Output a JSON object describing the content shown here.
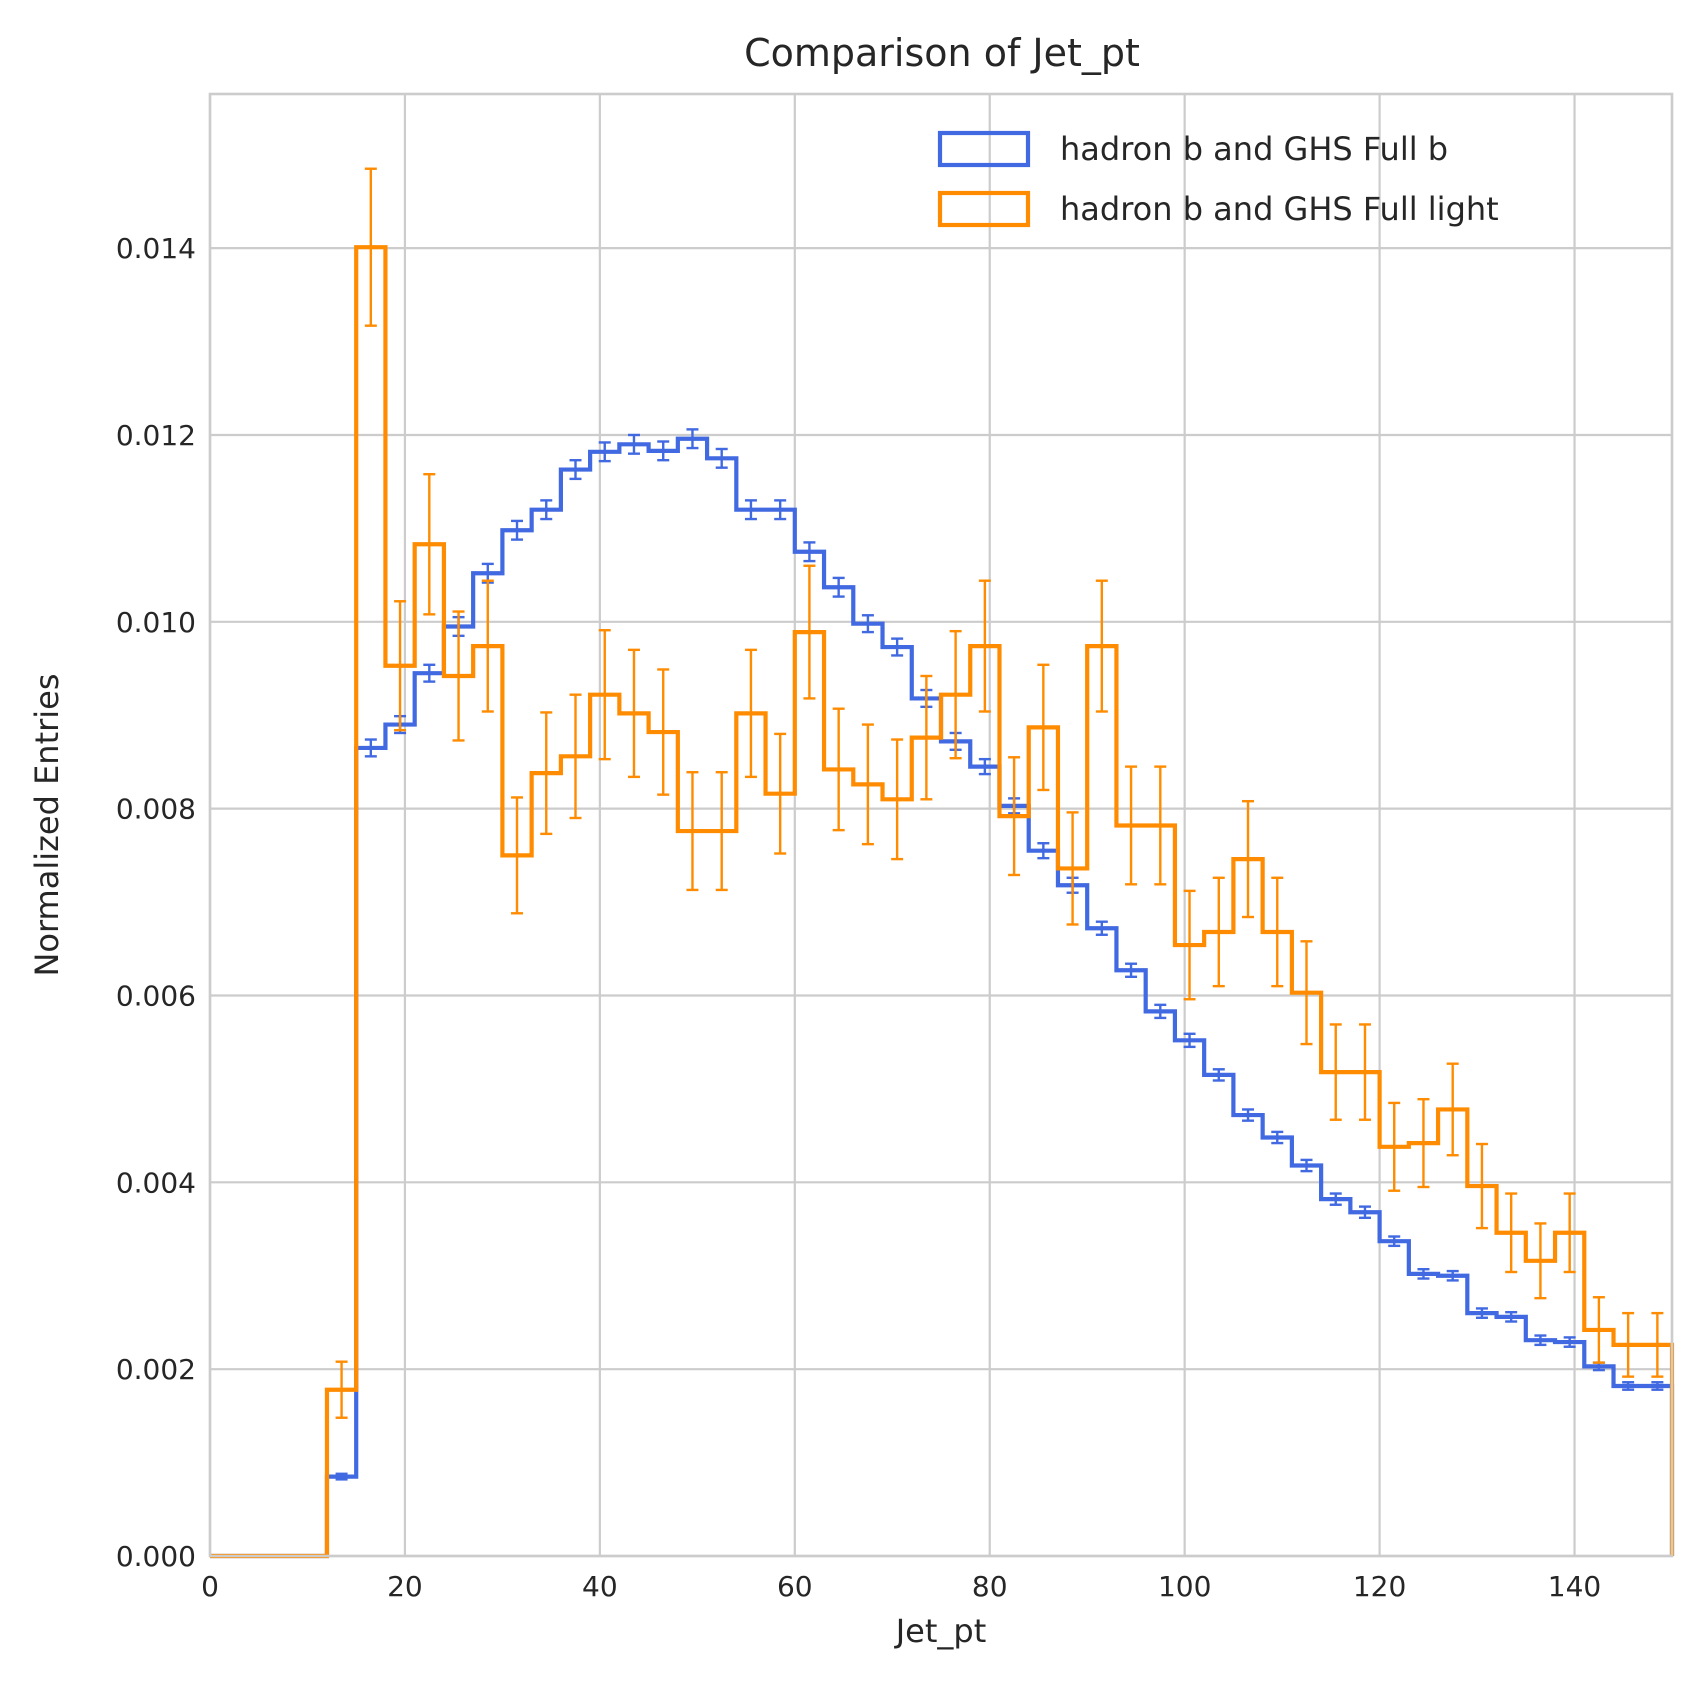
{
  "chart_data": {
    "type": "histogram",
    "title": "Comparison of Jet_pt",
    "xlabel": "Jet_pt",
    "ylabel": "Normalized Entries",
    "xlim": [
      0,
      150
    ],
    "ylim": [
      0,
      0.01565
    ],
    "xticks": [
      0,
      20,
      40,
      60,
      80,
      100,
      120,
      140
    ],
    "xtick_labels": [
      "0",
      "20",
      "40",
      "60",
      "80",
      "100",
      "120",
      "140"
    ],
    "yticks": [
      0,
      0.002,
      0.004,
      0.006,
      0.008,
      0.01,
      0.012,
      0.014
    ],
    "ytick_labels": [
      "0.000",
      "0.002",
      "0.004",
      "0.006",
      "0.008",
      "0.010",
      "0.012",
      "0.014"
    ],
    "grid": true,
    "legend_position": "top-right",
    "bin_edges_start": 0,
    "bin_width": 3,
    "series": [
      {
        "name": "hadron b and GHS Full b",
        "color": "#4169e1",
        "values": [
          0,
          0,
          0,
          0,
          0.00085,
          0.00865,
          0.0089,
          0.00945,
          0.00995,
          0.01052,
          0.01098,
          0.0112,
          0.01163,
          0.01182,
          0.0119,
          0.01183,
          0.01196,
          0.01175,
          0.0112,
          0.0112,
          0.01075,
          0.01037,
          0.00998,
          0.00973,
          0.00918,
          0.00872,
          0.00845,
          0.00803,
          0.00755,
          0.00718,
          0.00672,
          0.00627,
          0.00583,
          0.00552,
          0.00515,
          0.00472,
          0.00448,
          0.00418,
          0.00382,
          0.00368,
          0.00337,
          0.00302,
          0.003,
          0.0026,
          0.00256,
          0.00231,
          0.00229,
          0.00203,
          0.00182,
          0.00182
        ],
        "errors": [
          0,
          0,
          0,
          0,
          3e-05,
          9e-05,
          9e-05,
          9e-05,
          0.0001,
          0.0001,
          0.0001,
          0.0001,
          0.0001,
          0.0001,
          0.0001,
          0.0001,
          0.0001,
          0.0001,
          0.0001,
          0.0001,
          0.0001,
          0.0001,
          9e-05,
          9e-05,
          9e-05,
          9e-05,
          8e-05,
          8e-05,
          8e-05,
          8e-05,
          7e-05,
          7e-05,
          7e-05,
          7e-05,
          6e-05,
          6e-05,
          6e-05,
          6e-05,
          6e-05,
          6e-05,
          5e-05,
          5e-05,
          5e-05,
          5e-05,
          5e-05,
          5e-05,
          5e-05,
          4e-05,
          4e-05,
          4e-05
        ]
      },
      {
        "name": "hadron b and GHS Full light",
        "color": "#ff8c00",
        "values": [
          0,
          0,
          0,
          0,
          0.00178,
          0.01401,
          0.00953,
          0.01083,
          0.00942,
          0.00974,
          0.0075,
          0.00838,
          0.00856,
          0.00922,
          0.00902,
          0.00882,
          0.00776,
          0.00776,
          0.00902,
          0.00816,
          0.00989,
          0.00842,
          0.00826,
          0.0081,
          0.00876,
          0.00922,
          0.00974,
          0.00792,
          0.00887,
          0.00736,
          0.00974,
          0.00782,
          0.00782,
          0.00654,
          0.00668,
          0.00746,
          0.00668,
          0.00603,
          0.00518,
          0.00518,
          0.00438,
          0.00442,
          0.00478,
          0.00396,
          0.00346,
          0.00316,
          0.00346,
          0.00242,
          0.00226,
          0.00226
        ],
        "errors": [
          0,
          0,
          0,
          0,
          0.0003,
          0.00084,
          0.00069,
          0.00075,
          0.00069,
          0.0007,
          0.00062,
          0.00065,
          0.00066,
          0.00069,
          0.00068,
          0.00067,
          0.00063,
          0.00063,
          0.00068,
          0.00064,
          0.00071,
          0.00065,
          0.00064,
          0.00064,
          0.00066,
          0.00068,
          0.0007,
          0.00063,
          0.00067,
          0.0006,
          0.0007,
          0.00063,
          0.00063,
          0.00058,
          0.00058,
          0.00062,
          0.00058,
          0.00055,
          0.00051,
          0.00051,
          0.00047,
          0.00047,
          0.00049,
          0.00045,
          0.00042,
          0.0004,
          0.00042,
          0.00035,
          0.00034,
          0.00034
        ]
      }
    ]
  }
}
